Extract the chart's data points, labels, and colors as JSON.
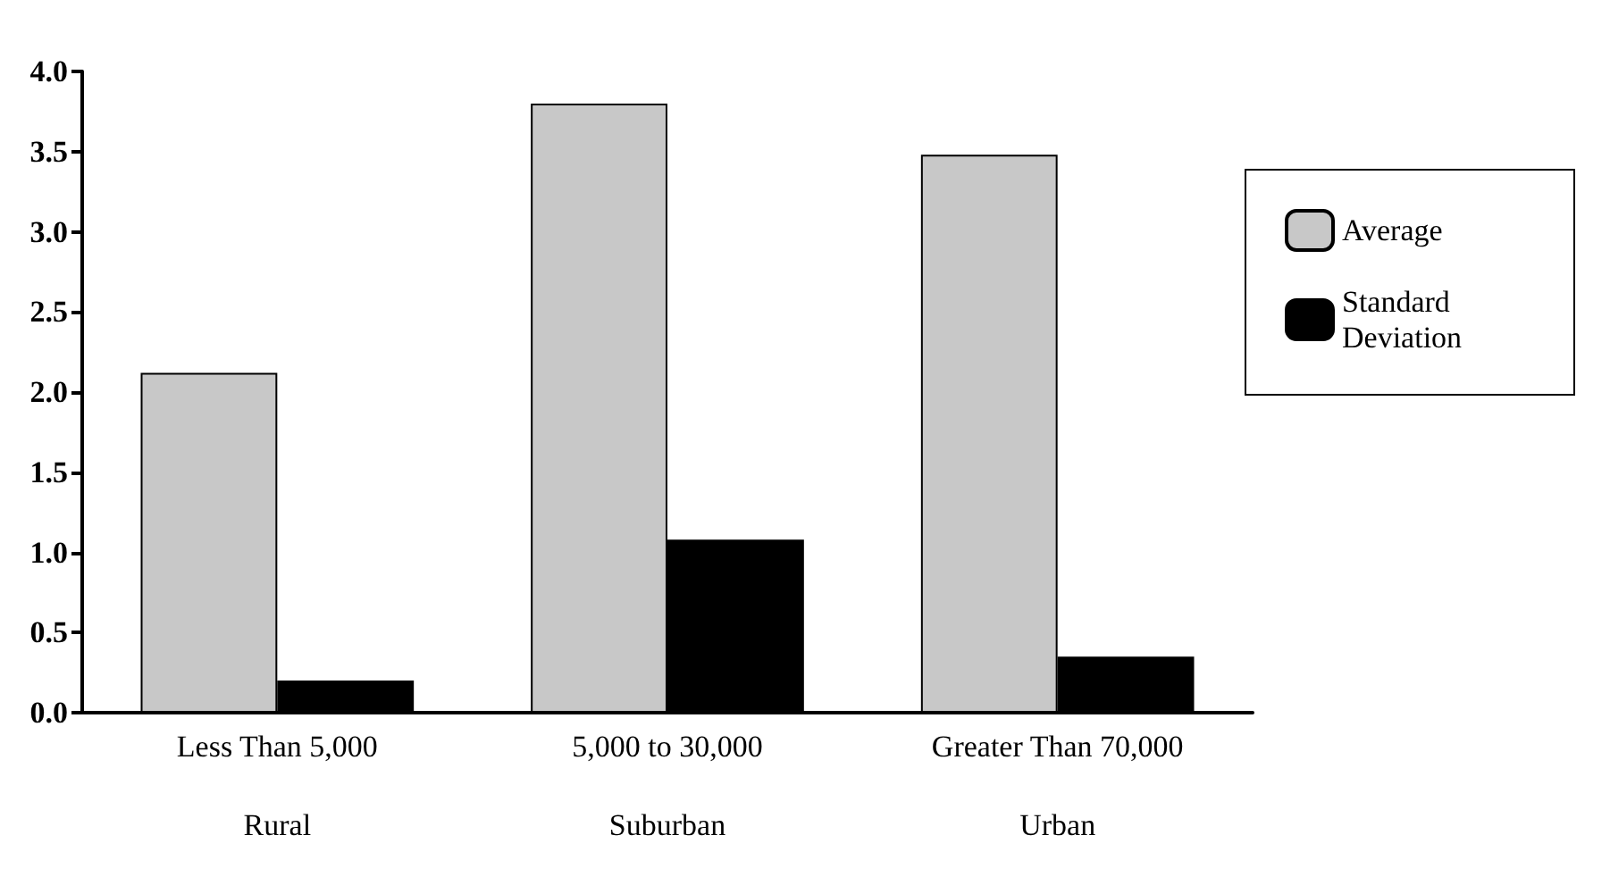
{
  "chart_data": {
    "type": "bar",
    "categories": [
      "Less Than 5,000\n\nRural",
      "5,000 to 30,000\n\nSuburban",
      "Greater Than 70,000\n\nUrban"
    ],
    "series": [
      {
        "name": "Average",
        "color": "#c8c8c8",
        "values": [
          2.12,
          3.8,
          3.48
        ]
      },
      {
        "name": "Standard Deviation",
        "color": "#000000",
        "values": [
          0.2,
          1.08,
          0.35
        ]
      }
    ],
    "ylim": [
      0,
      4
    ],
    "yticks": [
      {
        "value": 0,
        "label": "0.0"
      },
      {
        "value": 0.5,
        "label": "0.5"
      },
      {
        "value": 1,
        "label": "1.0"
      },
      {
        "value": 1.5,
        "label": "1.5"
      },
      {
        "value": 2,
        "label": "2.0"
      },
      {
        "value": 2.5,
        "label": "2.5"
      },
      {
        "value": 3,
        "label": "3.0"
      },
      {
        "value": 3.5,
        "label": "3.5"
      },
      {
        "value": 4,
        "label": "4.0"
      }
    ],
    "grid": false,
    "legend": "right"
  }
}
